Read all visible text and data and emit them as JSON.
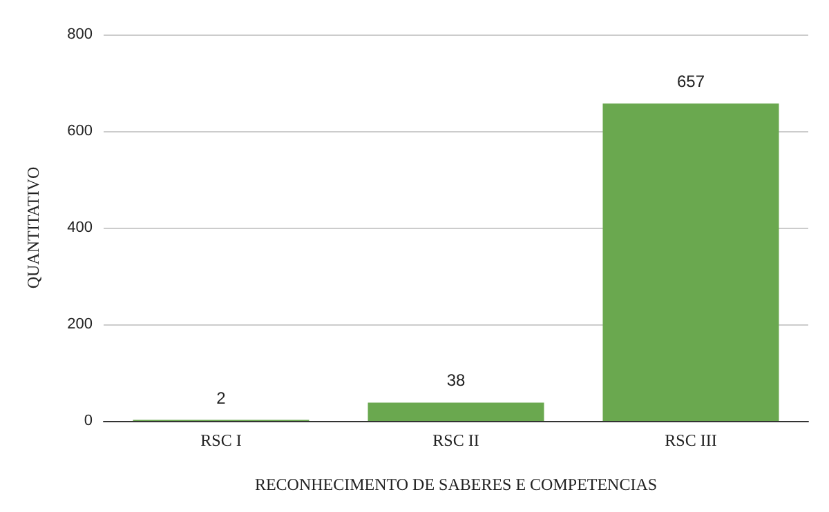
{
  "chart_data": {
    "type": "bar",
    "xlabel": "RECONHECIMENTO DE SABERES E COMPETENCIAS",
    "ylabel": "QUANTITATIVO",
    "categories": [
      "RSC I",
      "RSC II",
      "RSC III"
    ],
    "values": [
      2,
      38,
      657
    ],
    "color": "#6aa84f",
    "ylim": [
      0,
      800
    ],
    "yticks": [
      0,
      200,
      400,
      600,
      800
    ],
    "grid": "y",
    "data_labels": true
  }
}
